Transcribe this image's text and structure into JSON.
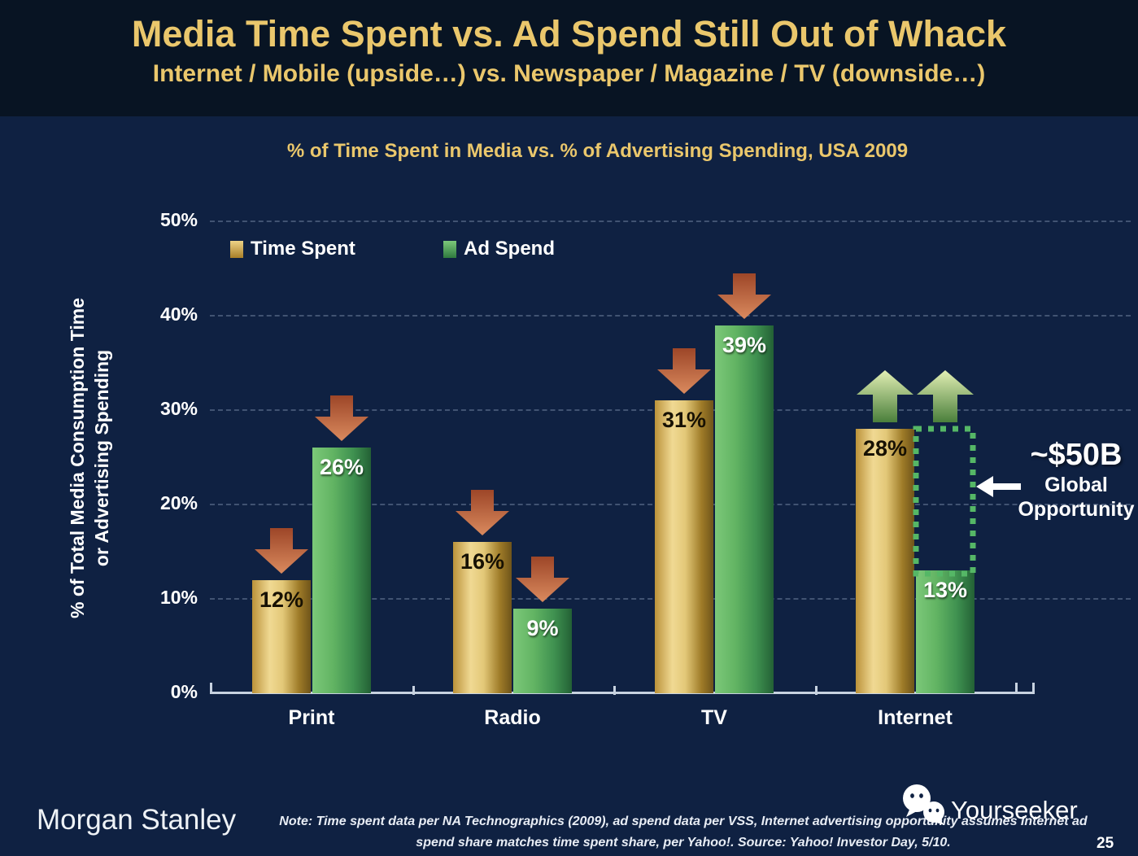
{
  "slide": {
    "title": "Media Time Spent vs. Ad Spend Still Out of Whack",
    "subtitle": "Internet / Mobile (upside…) vs. Newspaper / Magazine / TV (downside…)",
    "logo": "Morgan Stanley",
    "note_line1": "Note: Time spent data per NA Technographics (2009), ad spend data per VSS, Internet advertising opportunity assumes Internet ad",
    "note_line2": "spend share matches time spent share, per Yahoo!. Source: Yahoo! Investor Day, 5/10.",
    "watermark": "Yourseeker",
    "page_number": "25"
  },
  "chart_data": {
    "type": "bar",
    "title": "% of Time Spent in Media vs. % of Advertising Spending, USA 2009",
    "ylabel_line1": "% of Total Media Consumption Time",
    "ylabel_line2": "or Advertising Spending",
    "ylim": [
      0,
      50
    ],
    "ytick_values": [
      50,
      40,
      30,
      20,
      10,
      0
    ],
    "value_suffix": "%",
    "grid": "dashed horizontal lines at each 10%",
    "legend_position": "top-left inside plot",
    "categories": [
      "Print",
      "Radio",
      "TV",
      "Internet"
    ],
    "series": [
      {
        "name": "Time Spent",
        "values": [
          12,
          16,
          31,
          28
        ]
      },
      {
        "name": "Ad Spend",
        "values": [
          26,
          9,
          39,
          13
        ]
      }
    ],
    "trend_arrows": {
      "Print": "down",
      "Radio": "down",
      "TV": "down",
      "Internet": "up"
    },
    "annotations": {
      "opportunity_value": "~$50B",
      "opportunity_line1": "Global",
      "opportunity_line2": "Opportunity"
    },
    "colors": {
      "header_background": "#081423",
      "slide_background": "#0f2142",
      "title_gold": "#eac76c",
      "bar_gold_light": "#f0d993",
      "bar_gold_dark": "#6f541a",
      "bar_green_light": "#7cc879",
      "bar_green_dark": "#236135",
      "down_arrow": "#c06a45",
      "up_arrow": "#b7d489",
      "dotted_box_green": "#55b766",
      "axis": "#c7d2e0"
    }
  }
}
